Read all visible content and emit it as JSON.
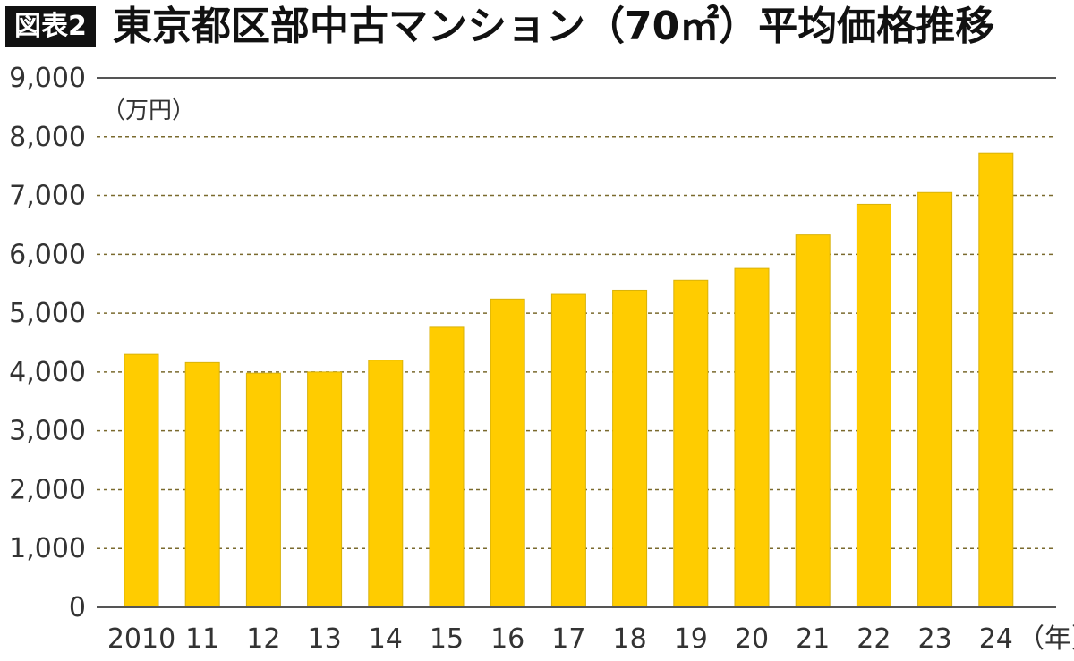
{
  "figure_label": "図表2",
  "chart_data": {
    "type": "bar",
    "title": "東京都区部中古マンション（70㎡）平均価格推移",
    "ylabel": "（万円）",
    "xlabel": "（年）",
    "categories": [
      "2010",
      "11",
      "12",
      "13",
      "14",
      "15",
      "16",
      "17",
      "18",
      "19",
      "20",
      "21",
      "22",
      "23",
      "24"
    ],
    "values": [
      4300,
      4160,
      3980,
      4000,
      4200,
      4760,
      5240,
      5320,
      5390,
      5560,
      5760,
      6330,
      6850,
      7050,
      7720
    ],
    "ylim": [
      0,
      9000
    ],
    "yticks": [
      "0",
      "1,000",
      "2,000",
      "3,000",
      "4,000",
      "5,000",
      "6,000",
      "7,000",
      "8,000",
      "9,000"
    ],
    "grid": true,
    "legend": "none",
    "colors": {
      "bar": "#FFCC00",
      "bar_edge": "#D9B20A",
      "grid": "#7A6A2E",
      "axis": "#555555"
    }
  }
}
